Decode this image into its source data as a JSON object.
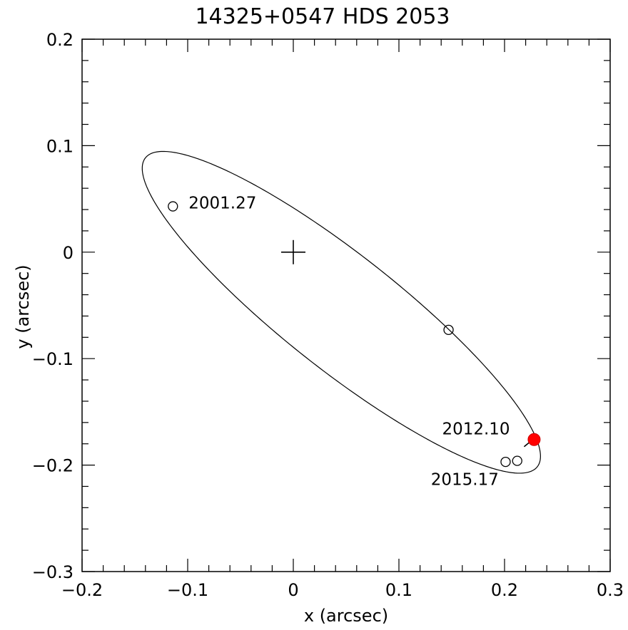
{
  "chart_data": {
    "type": "scatter",
    "title": "14325+0547   HDS 2053",
    "xlabel": "x  (arcsec)",
    "ylabel": "y  (arcsec)",
    "xlim": [
      -0.2,
      0.3
    ],
    "ylim": [
      -0.3,
      0.2
    ],
    "x_ticks": [
      -0.2,
      -0.1,
      0,
      0.1,
      0.2,
      0.3
    ],
    "x_tick_labels": [
      "−0.2",
      "−0.1",
      "0",
      "0.1",
      "0.2",
      "0.3"
    ],
    "y_ticks": [
      -0.3,
      -0.2,
      -0.1,
      0,
      0.1,
      0.2
    ],
    "y_tick_labels": [
      "−0.3",
      "−0.2",
      "−0.1",
      "0",
      "0.1",
      "0.2"
    ],
    "grid": false,
    "orbit": {
      "center": [
        0.0455,
        -0.0565
      ],
      "semi_major": 0.2355,
      "semi_minor": 0.054,
      "rotation_deg": -38
    },
    "primary_star": {
      "x": 0,
      "y": 0,
      "marker": "plus"
    },
    "observations": [
      {
        "x": -0.114,
        "y": 0.043,
        "label": "2001.27"
      },
      {
        "x": 0.147,
        "y": -0.073,
        "label": ""
      },
      {
        "x": 0.201,
        "y": -0.197,
        "label": ""
      },
      {
        "x": 0.212,
        "y": -0.196,
        "label": "2015.17"
      }
    ],
    "highlight_point": {
      "x": 0.228,
      "y": -0.176,
      "label": "2012.10",
      "color": "#ff0000"
    }
  }
}
